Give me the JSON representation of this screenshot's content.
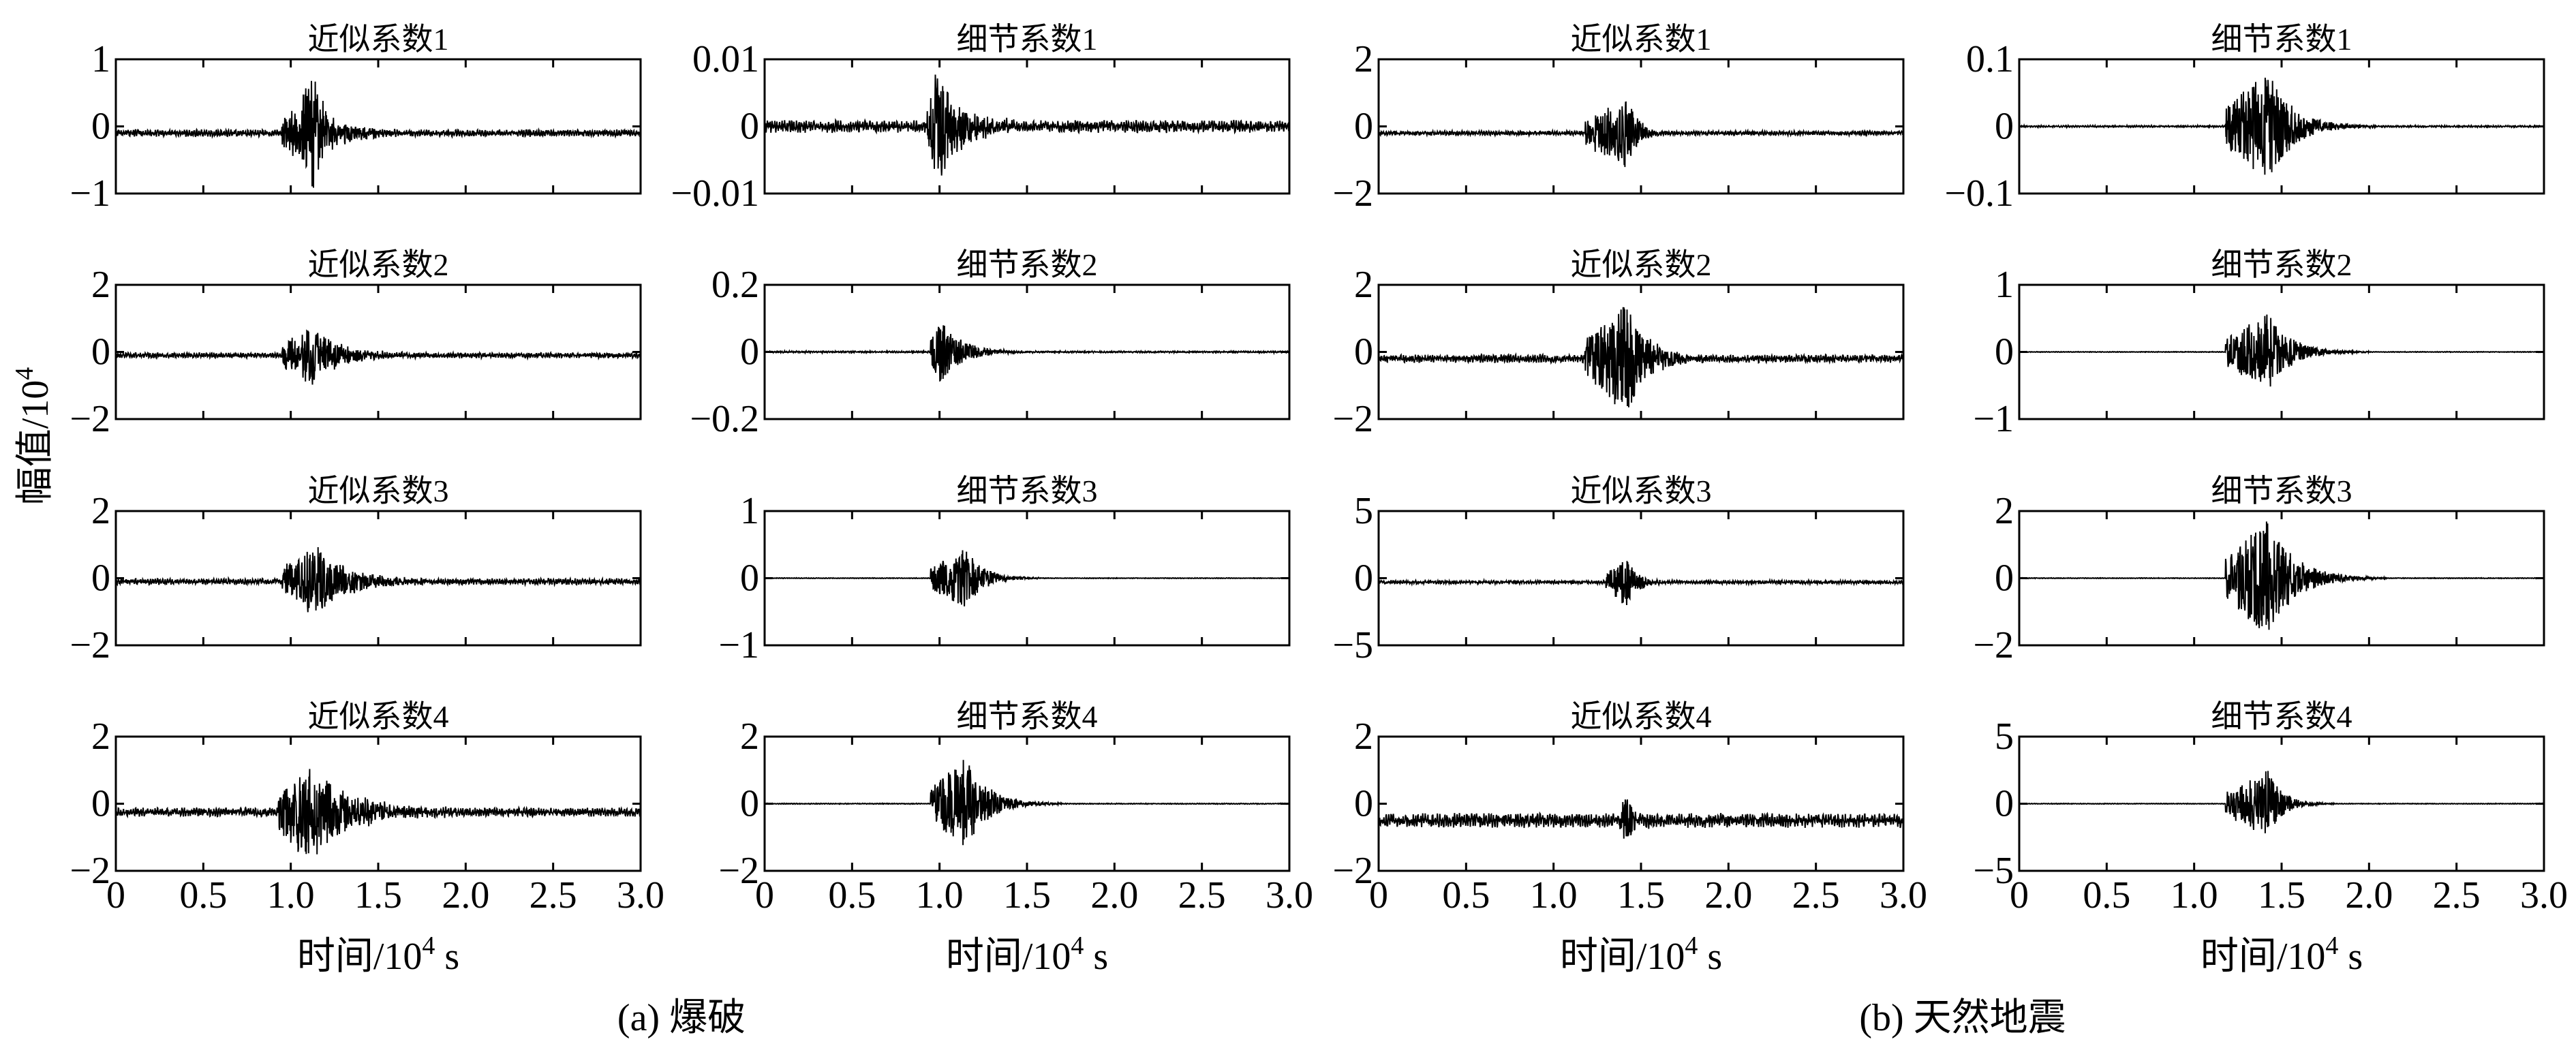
{
  "chart_data": [
    {
      "type": "line",
      "title": "近似系数1",
      "ylim": [
        -1,
        1
      ],
      "yticks": [
        {
          "v": 1,
          "label": "1"
        },
        {
          "v": 0,
          "label": "0"
        },
        {
          "v": -1,
          "label": "−1"
        }
      ],
      "baseline": -0.1,
      "noise": 0.04,
      "bursts": [
        {
          "start": 0.95,
          "peak": 1.1,
          "end": 1.8,
          "amp": 0.55
        },
        {
          "start": 1.05,
          "peak": 1.15,
          "end": 1.3,
          "amp": 0.45
        }
      ],
      "seed": 11
    },
    {
      "type": "line",
      "title": "细节系数1",
      "ylim": [
        -0.01,
        0.01
      ],
      "yticks": [
        {
          "v": 0.01,
          "label": "0.01"
        },
        {
          "v": 0,
          "label": "0"
        },
        {
          "v": -0.01,
          "label": "−0.01"
        }
      ],
      "baseline": 0,
      "noise": 0.0007,
      "bursts": [
        {
          "start": 0.93,
          "peak": 0.99,
          "end": 1.6,
          "amp": 0.0085
        }
      ],
      "seed": 12
    },
    {
      "type": "line",
      "title": "近似系数1",
      "ylim": [
        -2,
        2
      ],
      "yticks": [
        {
          "v": 2,
          "label": "2"
        },
        {
          "v": 0,
          "label": "0"
        },
        {
          "v": -2,
          "label": "−2"
        }
      ],
      "baseline": -0.2,
      "noise": 0.05,
      "bursts": [
        {
          "start": 1.18,
          "peak": 1.42,
          "end": 1.7,
          "amp": 1.1
        }
      ],
      "seed": 13
    },
    {
      "type": "line",
      "title": "细节系数1",
      "ylim": [
        -0.1,
        0.1
      ],
      "yticks": [
        {
          "v": 0.1,
          "label": "0.1"
        },
        {
          "v": 0,
          "label": "0"
        },
        {
          "v": -0.1,
          "label": "−0.1"
        }
      ],
      "baseline": 0,
      "noise": 0.001,
      "bursts": [
        {
          "start": 1.18,
          "peak": 1.42,
          "end": 2.05,
          "amp": 0.085
        }
      ],
      "seed": 14
    },
    {
      "type": "line",
      "title": "近似系数2",
      "ylim": [
        -2,
        2
      ],
      "yticks": [
        {
          "v": 2,
          "label": "2"
        },
        {
          "v": 0,
          "label": "0"
        },
        {
          "v": -2,
          "label": "−2"
        }
      ],
      "baseline": -0.1,
      "noise": 0.06,
      "bursts": [
        {
          "start": 0.95,
          "peak": 1.12,
          "end": 1.85,
          "amp": 0.85
        }
      ],
      "seed": 21
    },
    {
      "type": "line",
      "title": "细节系数2",
      "ylim": [
        -0.2,
        0.2
      ],
      "yticks": [
        {
          "v": 0.2,
          "label": "0.2"
        },
        {
          "v": 0,
          "label": "0"
        },
        {
          "v": -0.2,
          "label": "−0.2"
        }
      ],
      "baseline": 0,
      "noise": 0.002,
      "bursts": [
        {
          "start": 0.95,
          "peak": 1.0,
          "end": 1.55,
          "amp": 0.1
        }
      ],
      "seed": 22
    },
    {
      "type": "line",
      "title": "近似系数2",
      "ylim": [
        -2,
        2
      ],
      "yticks": [
        {
          "v": 2,
          "label": "2"
        },
        {
          "v": 0,
          "label": "0"
        },
        {
          "v": -2,
          "label": "−2"
        }
      ],
      "baseline": -0.2,
      "noise": 0.09,
      "bursts": [
        {
          "start": 1.18,
          "peak": 1.42,
          "end": 1.95,
          "amp": 1.6
        }
      ],
      "seed": 23
    },
    {
      "type": "line",
      "title": "细节系数2",
      "ylim": [
        -1,
        1
      ],
      "yticks": [
        {
          "v": 1,
          "label": "1"
        },
        {
          "v": 0,
          "label": "0"
        },
        {
          "v": -1,
          "label": "−1"
        }
      ],
      "baseline": 0,
      "noise": 0.004,
      "bursts": [
        {
          "start": 1.18,
          "peak": 1.42,
          "end": 2.0,
          "amp": 0.6
        }
      ],
      "seed": 24
    },
    {
      "type": "line",
      "title": "近似系数3",
      "ylim": [
        -2,
        2
      ],
      "yticks": [
        {
          "v": 2,
          "label": "2"
        },
        {
          "v": 0,
          "label": "0"
        },
        {
          "v": -2,
          "label": "−2"
        }
      ],
      "baseline": -0.1,
      "noise": 0.07,
      "bursts": [
        {
          "start": 0.95,
          "peak": 1.15,
          "end": 1.95,
          "amp": 1.05
        }
      ],
      "seed": 31
    },
    {
      "type": "line",
      "title": "细节系数3",
      "ylim": [
        -1,
        1
      ],
      "yticks": [
        {
          "v": 1,
          "label": "1"
        },
        {
          "v": 0,
          "label": "0"
        },
        {
          "v": -1,
          "label": "−1"
        }
      ],
      "baseline": 0,
      "noise": 0.004,
      "bursts": [
        {
          "start": 0.95,
          "peak": 1.15,
          "end": 1.6,
          "amp": 0.45
        }
      ],
      "seed": 32
    },
    {
      "type": "line",
      "title": "近似系数3",
      "ylim": [
        -5,
        5
      ],
      "yticks": [
        {
          "v": 5,
          "label": "5"
        },
        {
          "v": 0,
          "label": "0"
        },
        {
          "v": -5,
          "label": "−5"
        }
      ],
      "baseline": -0.3,
      "noise": 0.1,
      "bursts": [
        {
          "start": 1.3,
          "peak": 1.42,
          "end": 1.7,
          "amp": 1.8
        }
      ],
      "seed": 33
    },
    {
      "type": "line",
      "title": "细节系数3",
      "ylim": [
        -2,
        2
      ],
      "yticks": [
        {
          "v": 2,
          "label": "2"
        },
        {
          "v": 0,
          "label": "0"
        },
        {
          "v": -2,
          "label": "−2"
        }
      ],
      "baseline": 0,
      "noise": 0.008,
      "bursts": [
        {
          "start": 1.18,
          "peak": 1.42,
          "end": 2.1,
          "amp": 1.75
        }
      ],
      "seed": 34
    },
    {
      "type": "line",
      "title": "近似系数4",
      "ylim": [
        -2,
        2
      ],
      "yticks": [
        {
          "v": 2,
          "label": "2"
        },
        {
          "v": 0,
          "label": "0"
        },
        {
          "v": -2,
          "label": "−2"
        }
      ],
      "baseline": -0.25,
      "noise": 0.1,
      "bursts": [
        {
          "start": 0.93,
          "peak": 1.12,
          "end": 2.1,
          "amp": 1.45
        }
      ],
      "seed": 41
    },
    {
      "type": "line",
      "title": "细节系数4",
      "ylim": [
        -2,
        2
      ],
      "yticks": [
        {
          "v": 2,
          "label": "2"
        },
        {
          "v": 0,
          "label": "0"
        },
        {
          "v": -2,
          "label": "−2"
        }
      ],
      "baseline": 0,
      "noise": 0.01,
      "bursts": [
        {
          "start": 0.95,
          "peak": 1.15,
          "end": 1.7,
          "amp": 1.4
        }
      ],
      "seed": 42
    },
    {
      "type": "line",
      "title": "近似系数4",
      "ylim": [
        -2,
        2
      ],
      "yticks": [
        {
          "v": 2,
          "label": "2"
        },
        {
          "v": 0,
          "label": "0"
        },
        {
          "v": -2,
          "label": "−2"
        }
      ],
      "baseline": -0.5,
      "noise": 0.16,
      "bursts": [
        {
          "start": 1.38,
          "peak": 1.42,
          "end": 1.6,
          "amp": 0.9
        }
      ],
      "seed": 43
    },
    {
      "type": "line",
      "title": "细节系数4",
      "ylim": [
        -5,
        5
      ],
      "yticks": [
        {
          "v": 5,
          "label": "5"
        },
        {
          "v": 0,
          "label": "0"
        },
        {
          "v": -5,
          "label": "−5"
        }
      ],
      "baseline": 0,
      "noise": 0.02,
      "bursts": [
        {
          "start": 1.18,
          "peak": 1.42,
          "end": 1.8,
          "amp": 2.5
        }
      ],
      "seed": 44
    }
  ],
  "xaxis": {
    "range": [
      0,
      3.0
    ],
    "ticks": [
      0,
      0.5,
      1.0,
      1.5,
      2.0,
      2.5,
      3.0
    ],
    "tick_labels": [
      "0",
      "0.5",
      "1.0",
      "1.5",
      "2.0",
      "2.5",
      "3.0"
    ],
    "label": {
      "prefix": "时间/10",
      "sup": "4",
      "suffix": " s"
    }
  },
  "yaxis": {
    "label": {
      "prefix": "幅值/10",
      "sup": "4"
    }
  },
  "captions": [
    "(a) 爆破",
    "(b) 天然地震"
  ]
}
